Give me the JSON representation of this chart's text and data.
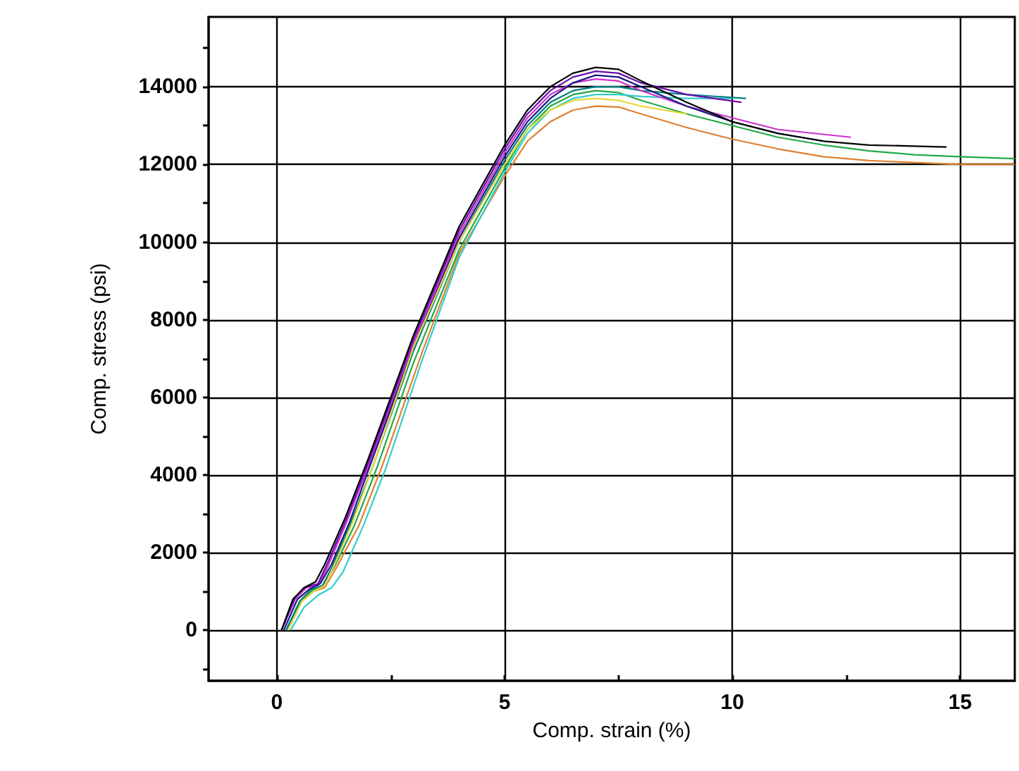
{
  "chart_data": {
    "type": "line",
    "xlabel": "Comp. strain (%)",
    "ylabel": "Comp. stress (psi)",
    "xlim": [
      -1.5,
      16.2
    ],
    "ylim": [
      -1300,
      15800
    ],
    "xticks": [
      0,
      {
        "value": 2.5,
        "label": null
      },
      5,
      {
        "value": 7.5,
        "label": null
      },
      10,
      {
        "value": 12.5,
        "label": null
      },
      15
    ],
    "yticks": [
      {
        "value": -1000,
        "label": null
      },
      0,
      {
        "value": 1000,
        "label": null
      },
      2000,
      {
        "value": 3000,
        "label": null
      },
      4000,
      {
        "value": 5000,
        "label": null
      },
      6000,
      {
        "value": 7000,
        "label": null
      },
      8000,
      {
        "value": 9000,
        "label": null
      },
      10000,
      {
        "value": 11000,
        "label": null
      },
      12000,
      {
        "value": 13000,
        "label": null
      },
      14000,
      {
        "value": 15000,
        "label": null
      }
    ],
    "grid": true,
    "marker": "none",
    "line_style": "solid",
    "series": [
      {
        "color": "#e08030",
        "x": [
          0.2,
          0.5,
          0.8,
          1.05,
          1.3,
          1.8,
          2.3,
          3.2,
          4,
          5,
          5.5,
          6,
          6.5,
          7,
          7.5,
          8,
          9,
          10,
          11,
          12,
          13,
          14,
          15,
          16.2
        ],
        "values": [
          0,
          700,
          1000,
          1100,
          1600,
          2700,
          4200,
          7200,
          9700,
          11700,
          12600,
          13100,
          13400,
          13500,
          13480,
          13300,
          12950,
          12650,
          12400,
          12200,
          12100,
          12050,
          12000,
          12000
        ]
      },
      {
        "color": "#22aa44",
        "x": [
          0.2,
          0.5,
          0.75,
          1,
          1.25,
          1.7,
          2.2,
          3,
          4,
          5,
          5.5,
          6,
          6.5,
          7,
          7.5,
          8,
          9,
          10,
          11,
          12,
          13,
          14,
          15,
          16.2
        ],
        "values": [
          0,
          700,
          1000,
          1150,
          1600,
          2700,
          4200,
          6900,
          9800,
          11900,
          12900,
          13500,
          13800,
          13900,
          13850,
          13650,
          13300,
          13000,
          12700,
          12500,
          12350,
          12250,
          12200,
          12150
        ]
      },
      {
        "color": "#33cccc",
        "x": [
          0.3,
          0.6,
          0.9,
          1.2,
          1.45,
          1.9,
          2.4,
          3.2,
          4,
          5,
          5.5,
          6,
          6.5,
          7,
          7.5,
          8,
          9,
          10
        ],
        "values": [
          0,
          600,
          900,
          1100,
          1500,
          2700,
          4200,
          7000,
          9600,
          11800,
          12800,
          13400,
          13700,
          13800,
          13800,
          13750,
          13700,
          13700
        ]
      },
      {
        "color": "#008080",
        "x": [
          0.2,
          0.5,
          0.75,
          1,
          1.2,
          1.6,
          2.1,
          3,
          4,
          5,
          5.5,
          6,
          6.5,
          7,
          7.5,
          8,
          9,
          10.3
        ],
        "values": [
          0,
          750,
          1050,
          1150,
          1600,
          2700,
          4200,
          7200,
          10000,
          12100,
          13000,
          13600,
          13900,
          14000,
          14000,
          13900,
          13800,
          13700
        ]
      },
      {
        "color": "#cc33cc",
        "x": [
          0.1,
          0.4,
          0.65,
          0.9,
          1.1,
          1.5,
          2,
          3,
          4,
          5,
          5.5,
          6,
          6.5,
          7,
          7.5,
          8,
          9,
          10,
          11,
          12.6
        ],
        "values": [
          0,
          800,
          1100,
          1150,
          1600,
          2700,
          4200,
          7400,
          10200,
          12300,
          13200,
          13800,
          14100,
          14200,
          14150,
          13900,
          13500,
          13200,
          12900,
          12700
        ]
      },
      {
        "color": "#1a1a80",
        "x": [
          0.15,
          0.45,
          0.7,
          0.95,
          1.2,
          1.6,
          2,
          3,
          4,
          5,
          5.5,
          6,
          6.5,
          7,
          7.5,
          8,
          9,
          10,
          11,
          12
        ],
        "values": [
          0,
          800,
          1050,
          1200,
          1700,
          2800,
          4100,
          7300,
          10100,
          12200,
          13100,
          13700,
          14100,
          14300,
          14250,
          14000,
          13500,
          13100,
          12800,
          12600
        ]
      },
      {
        "color": "#6a0dad",
        "x": [
          0.1,
          0.4,
          0.6,
          0.9,
          1.1,
          1.5,
          2,
          3,
          4,
          5,
          5.5,
          6,
          6.5,
          7,
          7.5,
          8,
          9,
          10.2
        ],
        "values": [
          0,
          850,
          1100,
          1200,
          1700,
          2800,
          4300,
          7500,
          10300,
          12400,
          13300,
          13900,
          14250,
          14400,
          14350,
          14100,
          13800,
          13600
        ]
      },
      {
        "color": "#000000",
        "x": [
          0.1,
          0.35,
          0.6,
          0.85,
          1.05,
          1.5,
          2,
          3,
          4,
          5,
          5.5,
          6,
          6.5,
          7,
          7.5,
          8,
          9,
          10,
          11,
          12,
          13,
          14.7
        ],
        "values": [
          0,
          800,
          1100,
          1250,
          1700,
          2900,
          4400,
          7600,
          10400,
          12500,
          13400,
          14000,
          14350,
          14500,
          14450,
          14150,
          13600,
          13100,
          12800,
          12600,
          12500,
          12450
        ]
      },
      {
        "color": "#e8d840",
        "x": [
          0.25,
          0.55,
          0.8,
          1.05,
          1.25,
          1.65,
          2.1,
          3,
          4,
          5,
          5.5,
          6,
          6.5,
          7,
          7.5,
          8,
          9
        ],
        "values": [
          0,
          750,
          1000,
          1150,
          1650,
          2750,
          4200,
          7300,
          10000,
          12000,
          12900,
          13400,
          13650,
          13700,
          13650,
          13500,
          13300
        ]
      }
    ]
  }
}
